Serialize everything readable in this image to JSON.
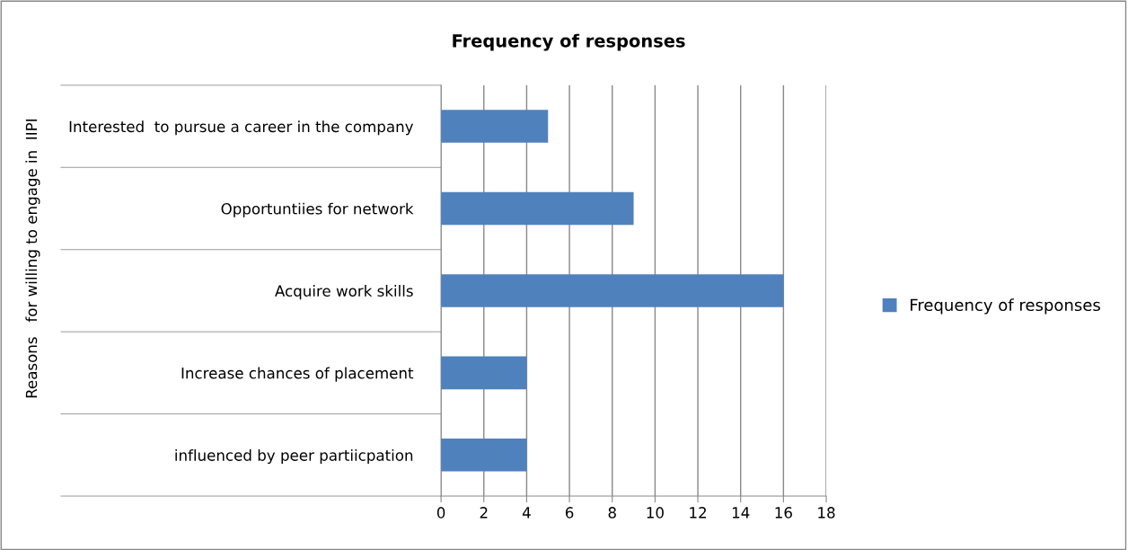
{
  "chart_data": {
    "type": "bar",
    "orientation": "horizontal",
    "title": "Frequency of responses",
    "ylabel": "Reasons   for willing to engage in  IIPI",
    "categories": [
      "Interested  to pursue a career in the company",
      "Opportuntiies for network",
      "Acquire work skills",
      "Increase chances of placement",
      "influenced by peer partiicpation"
    ],
    "series": [
      {
        "name": "Frequency of responses",
        "color": "#4f81bd",
        "values": [
          5,
          9,
          16,
          4,
          4
        ]
      }
    ],
    "xlim": [
      0,
      18
    ],
    "xticks": [
      0,
      2,
      4,
      6,
      8,
      10,
      12,
      14,
      16,
      18
    ],
    "grid": "x",
    "legend": "right"
  }
}
